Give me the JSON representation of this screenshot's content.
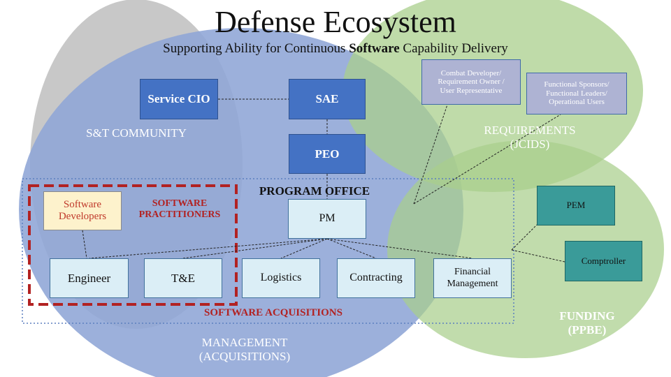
{
  "title": "Defense Ecosystem",
  "subtitle": {
    "before": "Supporting Ability for Continuous ",
    "bold": "Software",
    "after": " Capability Delivery"
  },
  "colors": {
    "st_circle": "#c8c8c8",
    "mgmt_circle": "#8ea5d6",
    "req_circle": "#a9cf8c",
    "fund_circle": "#a9cf8c",
    "blue_box": "#4472c4",
    "light_box": "#dbeef6",
    "teal_box": "#3a9b99",
    "lavender_box": "#aeb3d3",
    "practitioner_border": "#b22222"
  },
  "regions": {
    "st": "S&T COMMUNITY",
    "requirements": [
      "REQUIREMENTS",
      "(JCIDS)"
    ],
    "funding": [
      "FUNDING",
      "(PPBE)"
    ],
    "management": [
      "MANAGEMENT",
      "(ACQUISITIONS)"
    ],
    "program_office": "PROGRAM OFFICE",
    "software_practitioners": [
      "SOFTWARE",
      "PRACTITIONERS"
    ],
    "software_acquisitions": "SOFTWARE ACQUISITIONS"
  },
  "boxes": {
    "service_cio": "Service CIO",
    "sae": "SAE",
    "peo": "PEO",
    "pm": "PM",
    "software_developers": [
      "Software",
      "Developers"
    ],
    "engineer": "Engineer",
    "tne": "T&E",
    "logistics": "Logistics",
    "contracting": "Contracting",
    "financial_management": [
      "Financial",
      "Management"
    ],
    "combat_developer": [
      "Combat Developer/",
      "Requirement Owner /",
      "User Representative"
    ],
    "functional_sponsors": [
      "Functional Sponsors/",
      "Functional Leaders/",
      "Operational Users"
    ],
    "pem": "PEM",
    "comptroller": "Comptroller"
  }
}
